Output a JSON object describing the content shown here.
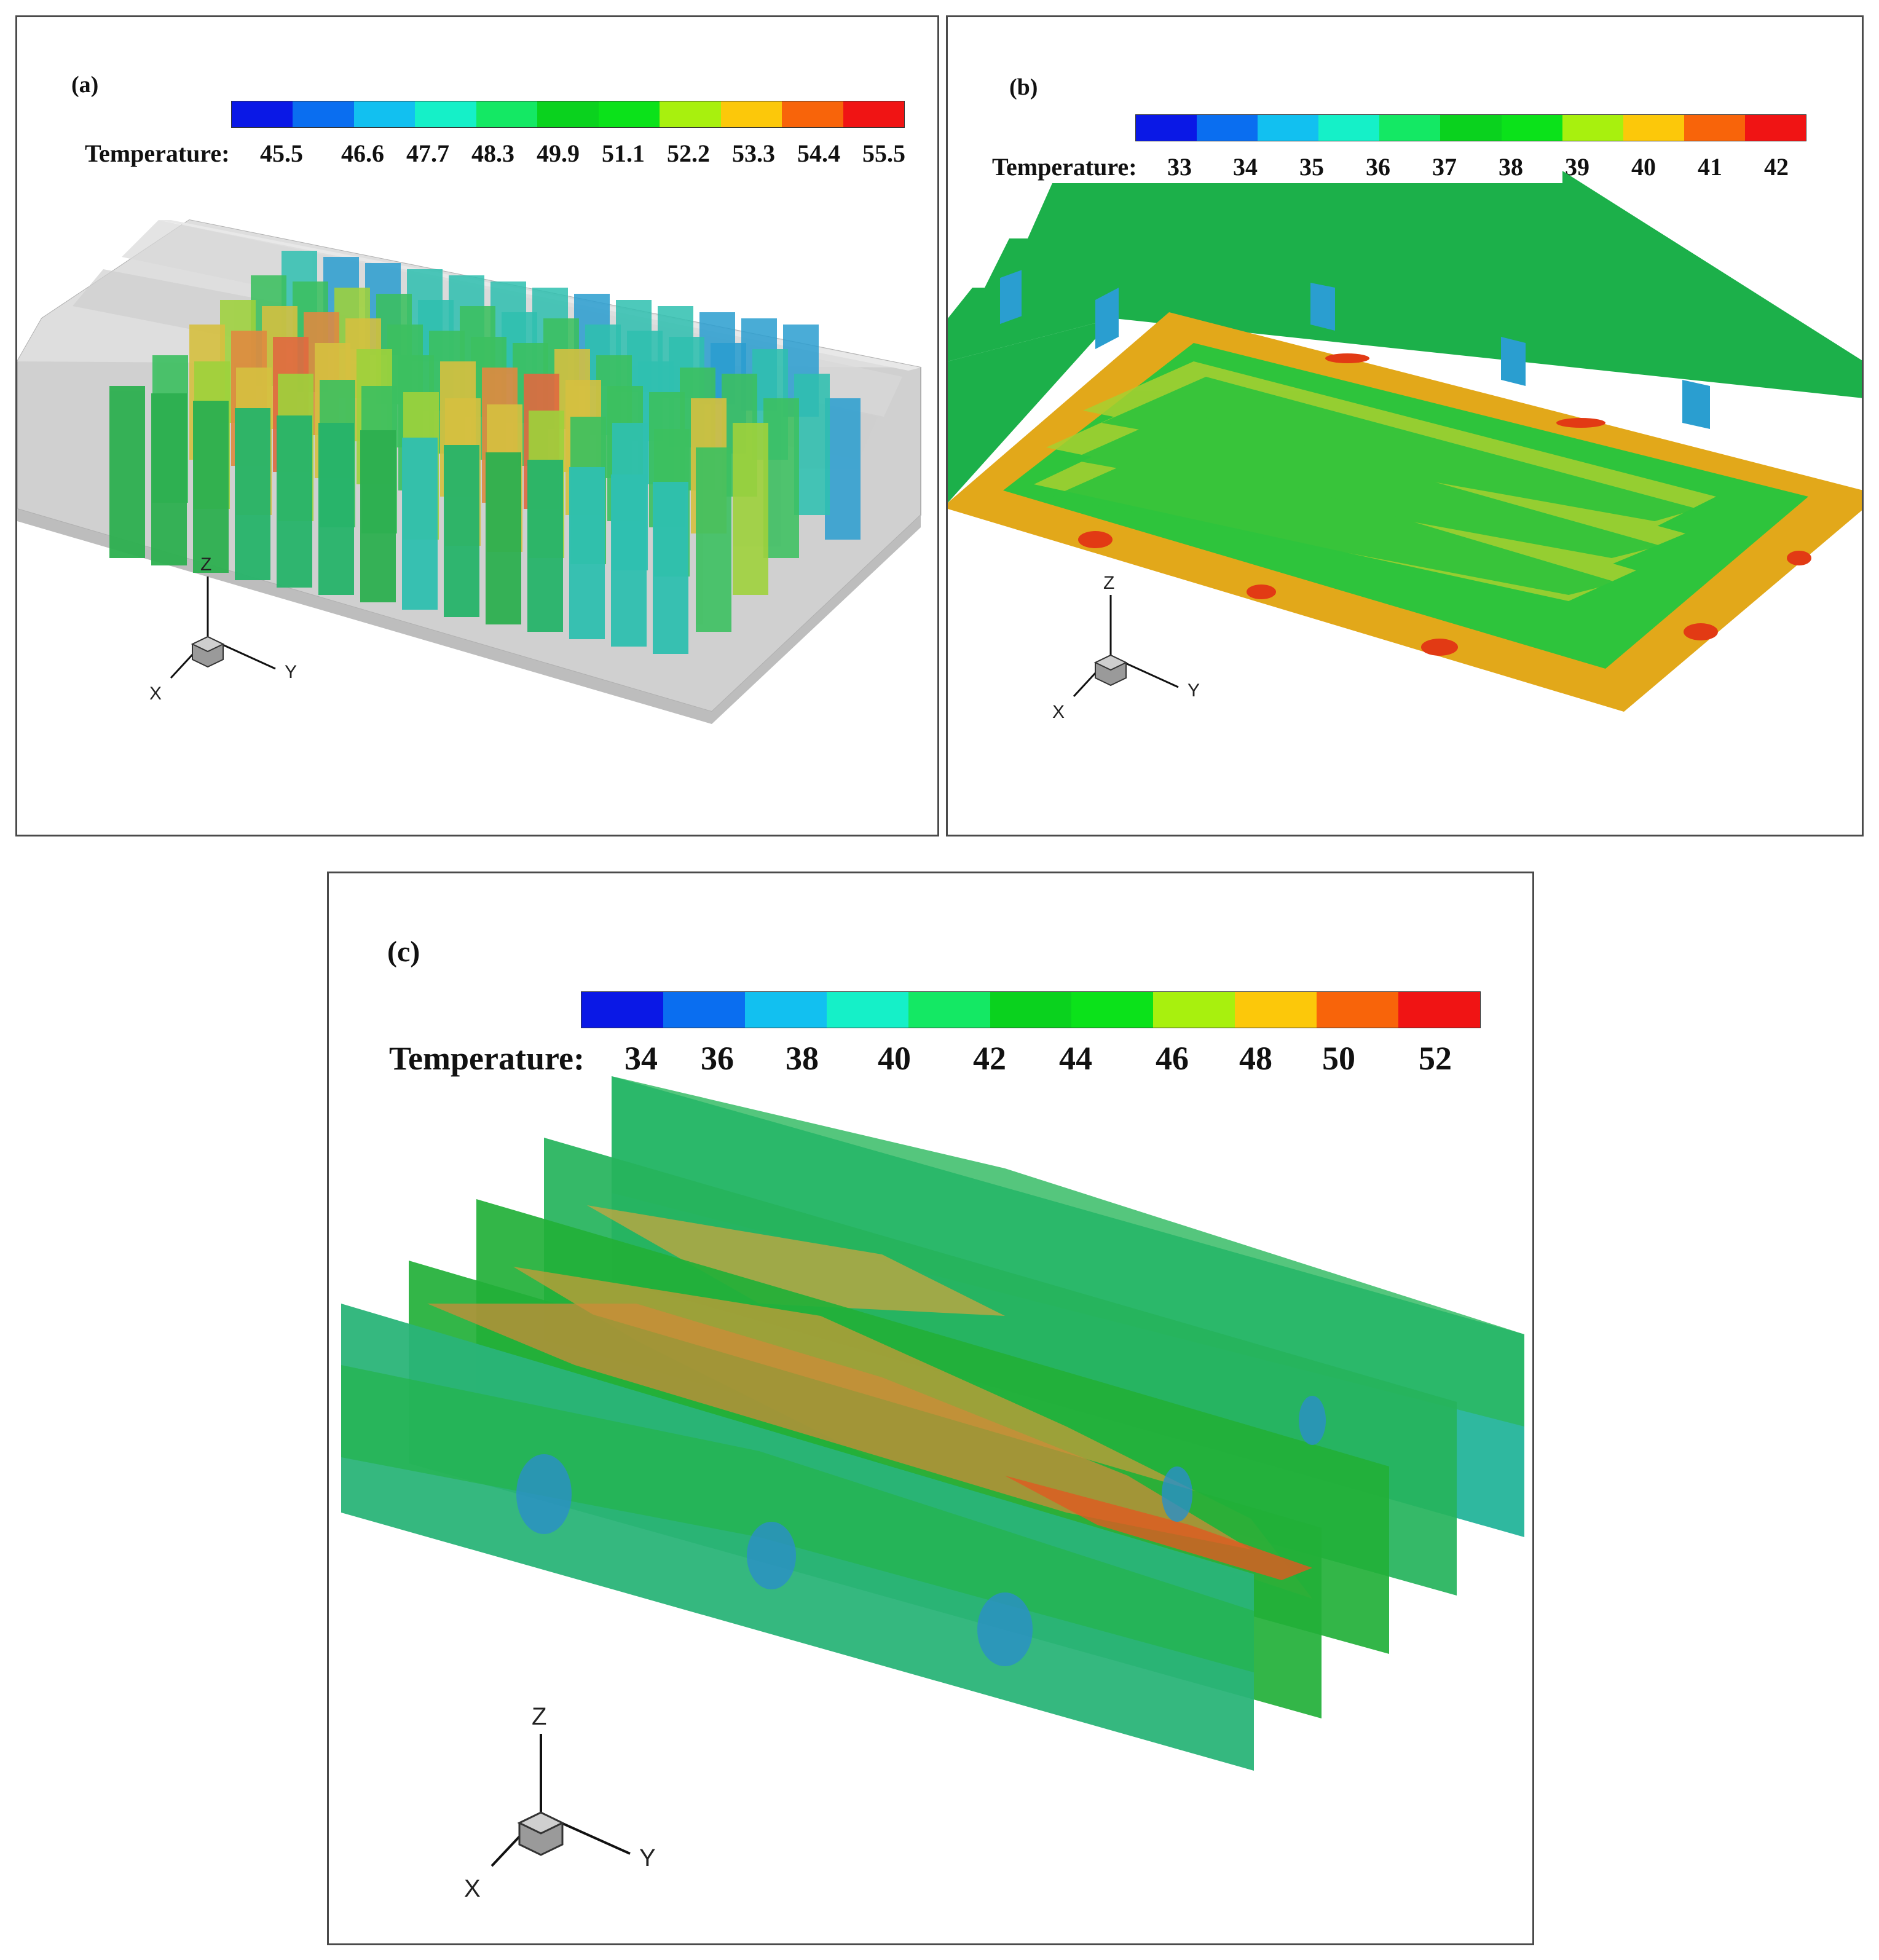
{
  "panels": [
    {
      "label": "(a)",
      "legend_title": "Temperature:",
      "ticks": [
        "45.5",
        "46.6",
        "47.7",
        "48.3",
        "49.9",
        "51.1",
        "52.2",
        "53.3",
        "54.4",
        "55.5"
      ],
      "axes": {
        "x": "X",
        "y": "Y",
        "z": "Z"
      }
    },
    {
      "label": "(b)",
      "legend_title": "Temperature:",
      "ticks": [
        "33",
        "34",
        "35",
        "36",
        "37",
        "38",
        "39",
        "40",
        "41",
        "42"
      ],
      "axes": {
        "x": "X",
        "y": "Y",
        "z": "Z"
      }
    },
    {
      "label": "(c)",
      "legend_title": "Temperature:",
      "ticks": [
        "34",
        "36",
        "38",
        "40",
        "42",
        "44",
        "46",
        "48",
        "50",
        "52"
      ],
      "axes": {
        "x": "X",
        "y": "Y",
        "z": "Z"
      }
    }
  ],
  "colormap": [
    "#0a18e6",
    "#0a6ef0",
    "#12c0f0",
    "#15f0c8",
    "#14e864",
    "#0ad21e",
    "#0be21a",
    "#a8f00e",
    "#fcc80a",
    "#f8640a",
    "#f01414"
  ]
}
